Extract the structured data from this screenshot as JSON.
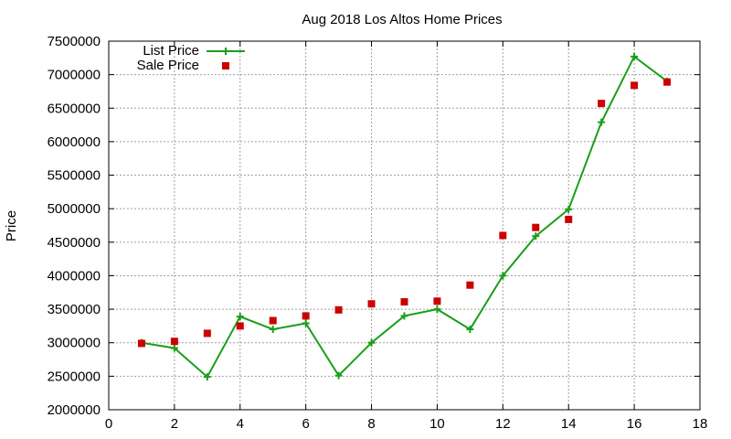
{
  "chart_data": {
    "type": "line",
    "title": "Aug 2018 Los Altos Home Prices",
    "xlabel": "",
    "ylabel": "Price",
    "xlim": [
      0,
      18
    ],
    "ylim": [
      2000000,
      7500000
    ],
    "xticks": [
      0,
      2,
      4,
      6,
      8,
      10,
      12,
      14,
      16,
      18
    ],
    "yticks": [
      2000000,
      2500000,
      3000000,
      3500000,
      4000000,
      4500000,
      5000000,
      5500000,
      6000000,
      6500000,
      7000000,
      7500000
    ],
    "grid": true,
    "legend_position": "top-left",
    "series": [
      {
        "name": "List Price",
        "style": "lines+crosses",
        "color": "#1a9e1a",
        "x": [
          1,
          2,
          3,
          4,
          5,
          6,
          7,
          8,
          9,
          10,
          11,
          12,
          13,
          14,
          15,
          16,
          17
        ],
        "y": [
          3000000,
          2920000,
          2490000,
          3390000,
          3200000,
          3290000,
          2510000,
          3000000,
          3400000,
          3500000,
          3200000,
          4000000,
          4590000,
          4990000,
          6290000,
          7270000,
          6900000
        ]
      },
      {
        "name": "Sale Price",
        "style": "squares",
        "color": "#cc0000",
        "x": [
          1,
          2,
          3,
          4,
          5,
          6,
          7,
          8,
          9,
          10,
          11,
          12,
          13,
          14,
          15,
          16,
          17
        ],
        "y": [
          2990000,
          3020000,
          3140000,
          3250000,
          3330000,
          3400000,
          3490000,
          3580000,
          3610000,
          3620000,
          3860000,
          4600000,
          4720000,
          4840000,
          6570000,
          6840000,
          6890000
        ]
      }
    ]
  }
}
